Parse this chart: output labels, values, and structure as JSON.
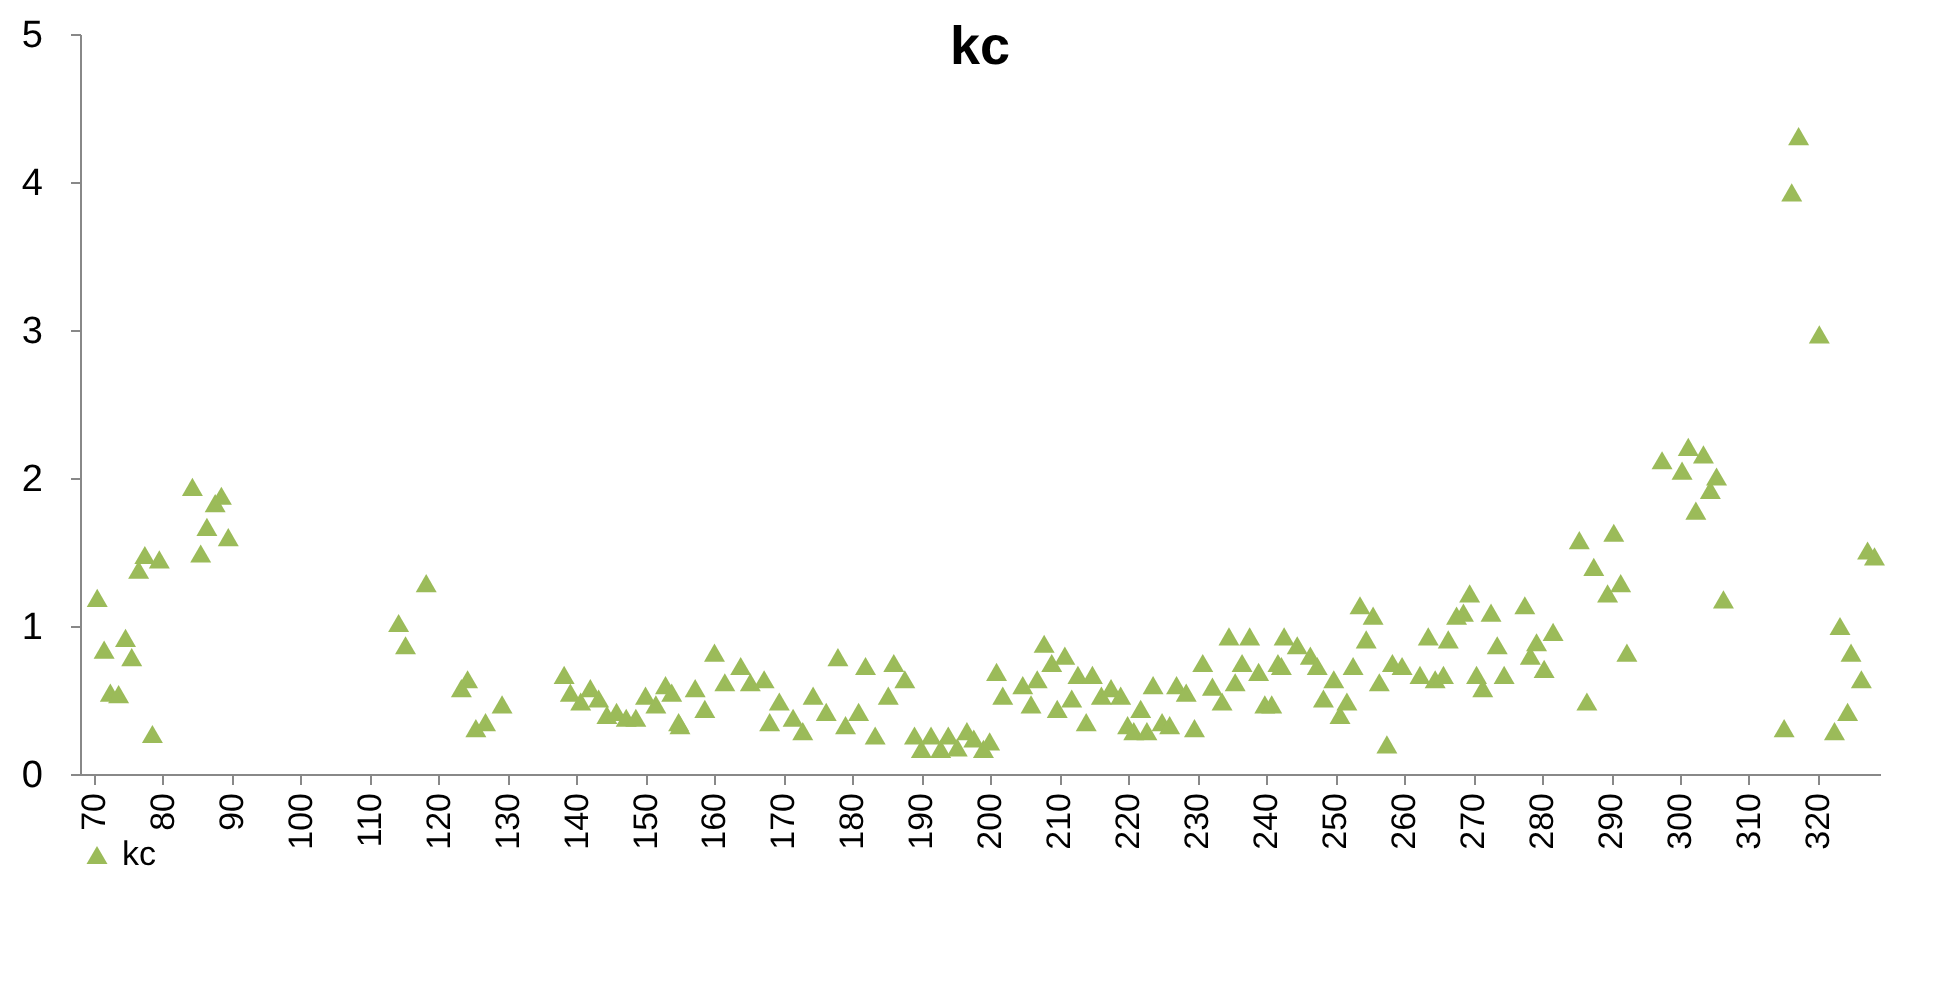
{
  "chart_data": {
    "type": "scatter",
    "title": "kc",
    "marker": "triangle",
    "legend": "bottom",
    "grid": false,
    "xlim": [
      68,
      329
    ],
    "xticks": [
      70,
      80,
      90,
      100,
      110,
      120,
      130,
      140,
      150,
      160,
      170,
      180,
      190,
      200,
      210,
      220,
      230,
      240,
      250,
      260,
      270,
      280,
      290,
      300,
      310,
      320
    ],
    "ylim": [
      0,
      5
    ],
    "yticks": [
      0,
      1,
      2,
      3,
      4,
      5
    ],
    "series": [
      {
        "name": "kc",
        "color": "#9bbb59",
        "x": [
          70.5,
          71.5,
          72.4,
          73.6,
          74.6,
          75.5,
          76.5,
          77.4,
          78.5,
          79.5,
          84.3,
          85.5,
          86.4,
          87.6,
          88.5,
          89.5,
          114.2,
          115.2,
          118.2,
          123.3,
          124.2,
          125.4,
          126.8,
          129.2,
          138.2,
          139.1,
          140.6,
          142,
          143.2,
          144.4,
          145.8,
          147.2,
          148.6,
          150,
          151.5,
          152.9,
          154.8,
          153.8,
          155,
          157.2,
          158.6,
          160,
          161.5,
          163.8,
          165.2,
          167.2,
          168,
          169.4,
          171.4,
          172.8,
          174.3,
          176.2,
          177.9,
          179,
          180.9,
          181.9,
          183.3,
          185.2,
          186,
          187.6,
          189,
          190,
          191.4,
          192.8,
          193.9,
          195.2,
          196.6,
          197.6,
          199,
          199.9,
          200.9,
          201.8,
          204.7,
          205.9,
          206.8,
          207.8,
          208.9,
          209.7,
          210.8,
          211.8,
          212.7,
          213.9,
          214.8,
          216.1,
          217.5,
          218.9,
          219.9,
          220.8,
          221.8,
          222.7,
          223.6,
          224.9,
          226,
          227,
          228.4,
          229.6,
          230.8,
          232.2,
          233.6,
          234.6,
          235.5,
          236.5,
          237.6,
          238.9,
          239.8,
          240.8,
          241.7,
          242.6,
          242.2,
          244.5,
          246.4,
          247.4,
          248.3,
          249.8,
          250.7,
          251.7,
          252.6,
          253.6,
          254.5,
          255.5,
          256.4,
          257.5,
          258.3,
          259.7,
          262.3,
          263.5,
          264.5,
          265.7,
          266.4,
          267.6,
          268.6,
          269.5,
          270.5,
          271.4,
          272.6,
          273.5,
          274.5,
          277.5,
          278.3,
          279.2,
          280.3,
          281.6,
          285.4,
          286.5,
          287.5,
          289.5,
          290.4,
          291.4,
          292.3,
          297.4,
          300.3,
          301.2,
          302.3,
          303.4,
          304.4,
          305.3,
          306.3,
          315.1,
          316.2,
          317.2,
          320.2,
          322.4,
          323.2,
          324.3,
          324.8,
          326.3,
          327.2,
          328.2
        ],
        "values": [
          1.19,
          0.84,
          0.55,
          0.54,
          0.92,
          0.79,
          1.38,
          1.48,
          0.27,
          1.45,
          1.94,
          1.49,
          1.67,
          1.83,
          1.88,
          1.6,
          1.02,
          0.87,
          1.29,
          0.58,
          0.64,
          0.31,
          0.35,
          0.47,
          0.67,
          0.55,
          0.49,
          0.58,
          0.51,
          0.4,
          0.42,
          0.38,
          0.38,
          0.53,
          0.47,
          0.6,
          0.35,
          0.55,
          0.33,
          0.58,
          0.44,
          0.82,
          0.62,
          0.73,
          0.62,
          0.64,
          0.35,
          0.49,
          0.38,
          0.29,
          0.53,
          0.42,
          0.79,
          0.33,
          0.42,
          0.73,
          0.26,
          0.53,
          0.75,
          0.64,
          0.26,
          0.17,
          0.26,
          0.17,
          0.26,
          0.18,
          0.29,
          0.24,
          0.17,
          0.22,
          0.69,
          0.53,
          0.6,
          0.47,
          0.64,
          0.88,
          0.75,
          0.44,
          0.8,
          0.51,
          0.67,
          0.35,
          0.67,
          0.53,
          0.58,
          0.53,
          0.33,
          0.29,
          0.44,
          0.29,
          0.6,
          0.35,
          0.33,
          0.6,
          0.55,
          0.31,
          0.75,
          0.59,
          0.49,
          0.93,
          0.62,
          0.75,
          0.93,
          0.69,
          0.47,
          0.47,
          0.75,
          0.93,
          0.73,
          0.87,
          0.8,
          0.73,
          0.51,
          0.64,
          0.4,
          0.49,
          0.73,
          1.14,
          0.91,
          1.07,
          0.62,
          0.2,
          0.75,
          0.73,
          0.67,
          0.93,
          0.64,
          0.67,
          0.91,
          1.07,
          1.09,
          1.22,
          0.67,
          0.58,
          1.09,
          0.87,
          0.67,
          1.14,
          0.8,
          0.89,
          0.71,
          0.96,
          1.58,
          0.49,
          1.4,
          1.22,
          1.63,
          1.29,
          0.82,
          2.12,
          2.05,
          2.21,
          1.78,
          2.16,
          1.92,
          2.01,
          1.18,
          0.31,
          3.93,
          4.31,
          2.97,
          0.29,
          1.0,
          0.42,
          0.82,
          0.64,
          1.51,
          1.47
        ]
      }
    ]
  }
}
